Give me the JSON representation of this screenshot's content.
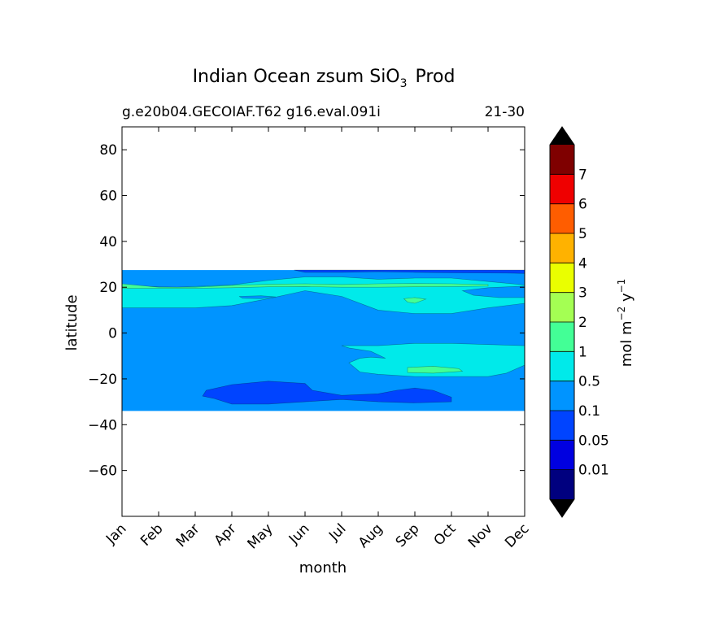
{
  "chart_data": {
    "type": "contourf",
    "title_main": "Indian Ocean zsum SiO",
    "title_sub": "3",
    "title_end": "Prod",
    "subtitle_left": "g.e20b04.GECOIAF.T62 g16.eval.091i",
    "subtitle_right": "21-30",
    "xlabel": "month",
    "ylabel": "latitude",
    "x_ticks": [
      "Jan",
      "Feb",
      "Mar",
      "Apr",
      "May",
      "Jun",
      "Jul",
      "Aug",
      "Sep",
      "Oct",
      "Nov",
      "Dec"
    ],
    "xlim": [
      0,
      11
    ],
    "ylim": [
      -80,
      90
    ],
    "y_ticks": [
      {
        "value": 80,
        "label": "80"
      },
      {
        "value": 60,
        "label": "60"
      },
      {
        "value": 40,
        "label": "40"
      },
      {
        "value": 20,
        "label": "20"
      },
      {
        "value": 0,
        "label": "0"
      },
      {
        "value": -20,
        "label": "−20"
      },
      {
        "value": -40,
        "label": "−40"
      },
      {
        "value": -60,
        "label": "−60"
      }
    ],
    "data_lat_range": [
      -34,
      27.5
    ],
    "background_level_color": "#0094ff",
    "regions": [
      {
        "name": "band-0.5-north",
        "color": "#00eaea",
        "points": [
          [
            0,
            20.5
          ],
          [
            1.5,
            20
          ],
          [
            3,
            21
          ],
          [
            4,
            23
          ],
          [
            5,
            24.5
          ],
          [
            6,
            24.5
          ],
          [
            7,
            23.5
          ],
          [
            8,
            24
          ],
          [
            9,
            24
          ],
          [
            10,
            22.5
          ],
          [
            11,
            21
          ],
          [
            11,
            13
          ],
          [
            10,
            11
          ],
          [
            9,
            8.5
          ],
          [
            8,
            8.5
          ],
          [
            7,
            10
          ],
          [
            6,
            16
          ],
          [
            5,
            18.5
          ],
          [
            4,
            15
          ],
          [
            3,
            12
          ],
          [
            2,
            11
          ],
          [
            1,
            11
          ],
          [
            0,
            11
          ]
        ]
      },
      {
        "name": "band-1-north",
        "color": "#43ff96",
        "points": [
          [
            0,
            21.5
          ],
          [
            1,
            20
          ],
          [
            2,
            20
          ],
          [
            3,
            20.8
          ],
          [
            4,
            21.3
          ],
          [
            5,
            21.5
          ],
          [
            6,
            21.2
          ],
          [
            7,
            21.5
          ],
          [
            8,
            21.6
          ],
          [
            9,
            21.5
          ],
          [
            10,
            21.2
          ],
          [
            10,
            20.5
          ],
          [
            9,
            20.3
          ],
          [
            8,
            20.2
          ],
          [
            7,
            20
          ],
          [
            6,
            20
          ],
          [
            5,
            20.3
          ],
          [
            4,
            20.2
          ],
          [
            3,
            19.8
          ],
          [
            2,
            19.5
          ],
          [
            1,
            19.5
          ],
          [
            0,
            19.5
          ]
        ]
      },
      {
        "name": "patch-0.1-ne",
        "color": "#0094ff",
        "points": [
          [
            9.3,
            18.5
          ],
          [
            10,
            19.8
          ],
          [
            11,
            20.5
          ],
          [
            11,
            15.5
          ],
          [
            10.3,
            15.5
          ],
          [
            9.6,
            16.5
          ]
        ]
      },
      {
        "name": "patch-0.1-nw",
        "color": "#0094ff",
        "points": [
          [
            3.2,
            16
          ],
          [
            3.8,
            16.3
          ],
          [
            4.2,
            15.8
          ],
          [
            3.8,
            15
          ],
          [
            3.3,
            15.2
          ]
        ]
      },
      {
        "name": "patch-1-sep",
        "color": "#43ff96",
        "points": [
          [
            7.7,
            15
          ],
          [
            8,
            15.5
          ],
          [
            8.3,
            14.8
          ],
          [
            8,
            13
          ],
          [
            7.8,
            13.5
          ]
        ]
      },
      {
        "name": "band-0.05-top",
        "color": "#0044ff",
        "points": [
          [
            4.7,
            27.5
          ],
          [
            11,
            27.5
          ],
          [
            11,
            26
          ],
          [
            10.5,
            26.2
          ],
          [
            9,
            26.3
          ],
          [
            8,
            26.5
          ],
          [
            7,
            26.8
          ],
          [
            6,
            26.5
          ],
          [
            5,
            26.5
          ]
        ]
      },
      {
        "name": "band-0.5-south",
        "color": "#00eaea",
        "points": [
          [
            6,
            -5.5
          ],
          [
            7,
            -5.5
          ],
          [
            8,
            -4.5
          ],
          [
            9,
            -4.5
          ],
          [
            10,
            -5
          ],
          [
            11,
            -5.5
          ],
          [
            11,
            -14
          ],
          [
            10.5,
            -17.5
          ],
          [
            10,
            -19
          ],
          [
            9,
            -19
          ],
          [
            8,
            -19
          ],
          [
            7.5,
            -18.5
          ],
          [
            7,
            -18
          ],
          [
            6.5,
            -17
          ],
          [
            6.2,
            -13
          ],
          [
            6.5,
            -11
          ],
          [
            6.8,
            -10.5
          ],
          [
            7.2,
            -11
          ],
          [
            6.8,
            -8
          ],
          [
            6.2,
            -6.5
          ]
        ]
      },
      {
        "name": "patch-1-south",
        "color": "#43ff96",
        "points": [
          [
            7.8,
            -15
          ],
          [
            8.5,
            -14.5
          ],
          [
            9.2,
            -15.5
          ],
          [
            9.3,
            -16.7
          ],
          [
            8.5,
            -17.5
          ],
          [
            7.8,
            -17.2
          ]
        ]
      },
      {
        "name": "region-0.05-south",
        "color": "#0044ff",
        "points": [
          [
            2.3,
            -25
          ],
          [
            3,
            -22.5
          ],
          [
            4,
            -21
          ],
          [
            5,
            -22
          ],
          [
            5.2,
            -25
          ],
          [
            6,
            -27.2
          ],
          [
            7,
            -26.5
          ],
          [
            7.5,
            -25
          ],
          [
            8,
            -24
          ],
          [
            8.5,
            -25
          ],
          [
            9,
            -28
          ],
          [
            9,
            -30
          ],
          [
            8,
            -30.5
          ],
          [
            7,
            -30
          ],
          [
            6,
            -29
          ],
          [
            5,
            -30
          ],
          [
            4,
            -31
          ],
          [
            3,
            -31
          ],
          [
            2.5,
            -28.5
          ],
          [
            2.2,
            -27.5
          ]
        ]
      }
    ],
    "colorbar": {
      "colors": [
        "#00007f",
        "#0000e0",
        "#0044ff",
        "#0094ff",
        "#00eaea",
        "#43ff96",
        "#a4ff53",
        "#eaff00",
        "#ffb200",
        "#ff5d00",
        "#ef0000",
        "#7f0000"
      ],
      "labels": [
        "0.01",
        "0.05",
        "0.1",
        "0.5",
        "1",
        "2",
        "3",
        "4",
        "5",
        "6",
        "7"
      ],
      "extend_color": "#000000",
      "label_main": "mol m",
      "label_exp1": "−2",
      "label_mid": " y",
      "label_exp2": "−1"
    }
  }
}
